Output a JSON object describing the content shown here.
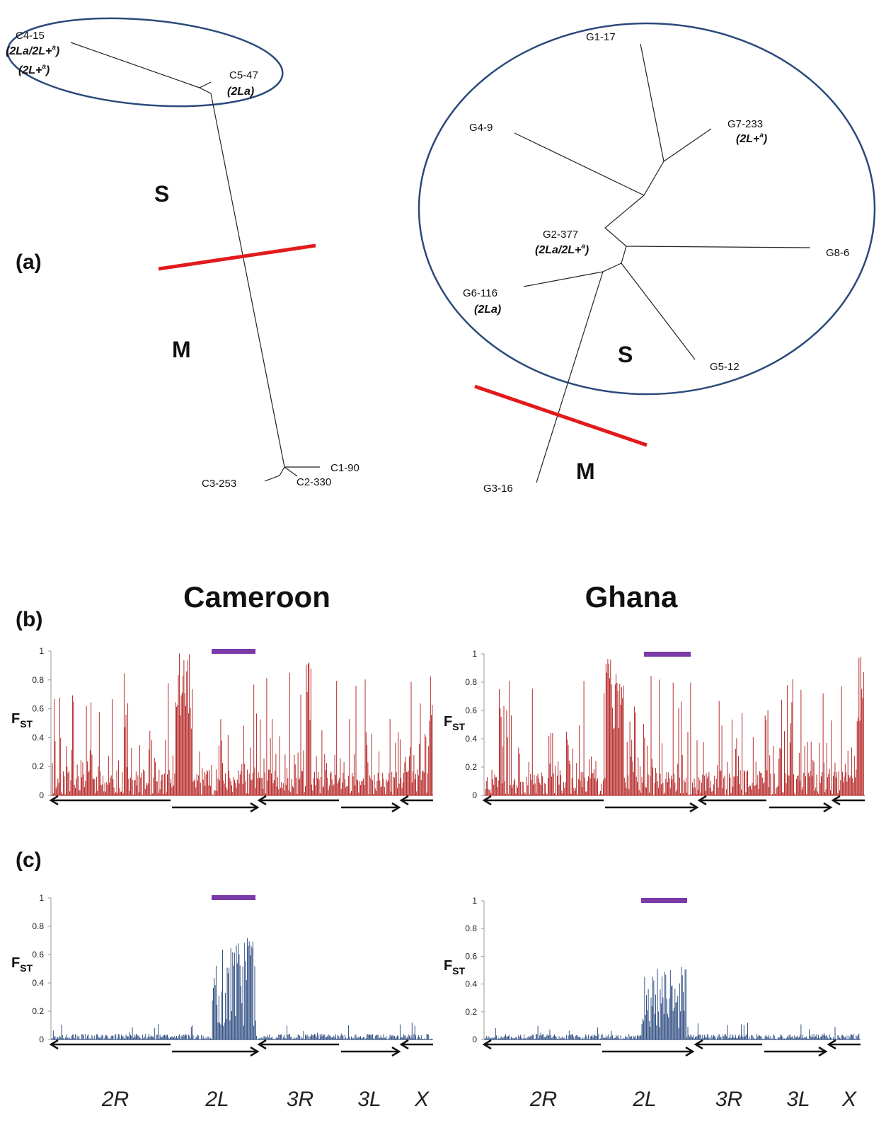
{
  "panel_labels": {
    "a": "(a)",
    "b": "(b)",
    "c": "(c)"
  },
  "countries": {
    "cameroon": "Cameroon",
    "ghana": "Ghana"
  },
  "tree_cameroon": {
    "nodes": {
      "c4_15": "C4-15",
      "c4_15_kary1": "(2La/2L+a)",
      "c4_15_kary2": "(2L+a)",
      "c5_47": "C5-47",
      "c5_47_kary": "(2La)",
      "c1_90": "C1-90",
      "c2_330": "C2-330",
      "c3_253": "C3-253"
    },
    "form_s": "S",
    "form_m": "M"
  },
  "tree_ghana": {
    "nodes": {
      "g1_17": "G1-17",
      "g4_9": "G4-9",
      "g7_233": "G7-233",
      "g7_233_kary": "(2L+a)",
      "g2_377": "G2-377",
      "g2_377_kary": "(2La/2L+a)",
      "g8_6": "G8-6",
      "g6_116": "G6-116",
      "g6_116_kary": "(2La)",
      "g5_12": "G5-12",
      "g3_16": "G3-16"
    },
    "form_s": "S",
    "form_m": "M"
  },
  "chart_data": [
    {
      "id": "b-cameroon",
      "type": "bar",
      "ylabel": "FST",
      "ylim": [
        0,
        1
      ],
      "yticks": [
        "0",
        "0.2",
        "0.4",
        "0.6",
        "0.8",
        "1"
      ],
      "color": "#b01515",
      "arms": [
        "2R",
        "2L",
        "3R",
        "3L",
        "X"
      ]
    },
    {
      "id": "b-ghana",
      "type": "bar",
      "ylabel": "FST",
      "ylim": [
        0,
        1
      ],
      "yticks": [
        "0",
        "0.2",
        "0.4",
        "0.6",
        "0.8",
        "1"
      ],
      "color": "#b01515",
      "arms": [
        "2R",
        "2L",
        "3R",
        "3L",
        "X"
      ]
    },
    {
      "id": "c-cameroon",
      "type": "bar",
      "ylabel": "FST",
      "ylim": [
        0,
        1
      ],
      "yticks": [
        "0",
        "0.2",
        "0.4",
        "0.6",
        "0.8",
        "1"
      ],
      "color": "#1f3f78",
      "arms": [
        "2R",
        "2L",
        "3R",
        "3L",
        "X"
      ]
    },
    {
      "id": "c-ghana",
      "type": "bar",
      "ylabel": "FST",
      "ylim": [
        0,
        1
      ],
      "yticks": [
        "0",
        "0.2",
        "0.4",
        "0.6",
        "0.8",
        "1"
      ],
      "color": "#1f3f78",
      "arms": [
        "2R",
        "2L",
        "3R",
        "3L",
        "X"
      ]
    }
  ],
  "arm_labels": [
    "2R",
    "2L",
    "3R",
    "3L",
    "X"
  ],
  "colors": {
    "marker": "#e31a1c",
    "ellipse": "#2a4a7a",
    "inversion_bar": "#7b3aa8"
  }
}
